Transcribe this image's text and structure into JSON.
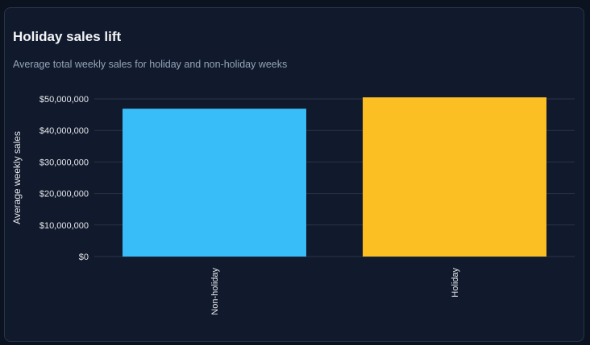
{
  "card": {
    "title": "Holiday sales lift",
    "subtitle": "Average total weekly sales for holiday and non-holiday weeks"
  },
  "chart_data": {
    "type": "bar",
    "title": "Holiday sales lift",
    "subtitle": "Average total weekly sales for holiday and non-holiday weeks",
    "categories": [
      "Non-holiday",
      "Holiday"
    ],
    "values": [
      46900000,
      50500000
    ],
    "colors": [
      "#38bdf8",
      "#fbbf24"
    ],
    "xlabel": "",
    "ylabel": "Average weekly sales",
    "ylim": [
      0,
      50000000
    ],
    "yticks": [
      0,
      10000000,
      20000000,
      30000000,
      40000000,
      50000000
    ],
    "ytick_labels": [
      "$0",
      "$10,000,000",
      "$20,000,000",
      "$30,000,000",
      "$40,000,000",
      "$50,000,000"
    ],
    "grid": true,
    "legend": false,
    "background_color": "#111a2c",
    "grid_color": "#2a3447"
  }
}
